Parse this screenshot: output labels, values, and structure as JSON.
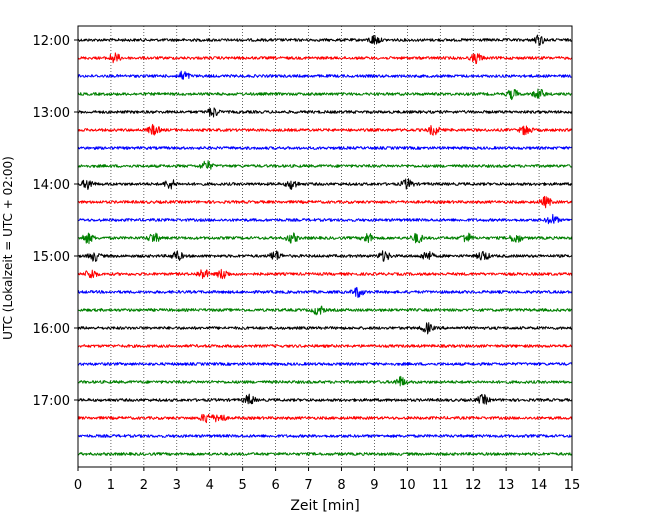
{
  "chart_data": {
    "type": "line",
    "title": "",
    "xlabel": "Zeit  [min]",
    "ylabel": "UTC (Lokalzeit = UTC + 02:00)",
    "xlim": [
      0,
      15
    ],
    "x_ticks": [
      "0",
      "1",
      "2",
      "3",
      "4",
      "5",
      "6",
      "7",
      "8",
      "9",
      "10",
      "11",
      "12",
      "13",
      "14",
      "15"
    ],
    "y_tick_labels": [
      "12:00",
      "13:00",
      "14:00",
      "15:00",
      "16:00",
      "17:00"
    ],
    "grid": "vertical dotted lines at each minute",
    "trace_colors_cycle": [
      "#000000",
      "#ff0000",
      "#0000ff",
      "#008000"
    ],
    "series": [
      {
        "start": "12:00",
        "color": "#000000",
        "events_min": [
          9.0,
          14.0
        ]
      },
      {
        "start": "12:15",
        "color": "#ff0000",
        "events_min": [
          1.1,
          12.1
        ]
      },
      {
        "start": "12:30",
        "color": "#0000ff",
        "events_min": [
          3.2
        ]
      },
      {
        "start": "12:45",
        "color": "#008000",
        "events_min": [
          13.2,
          14.0
        ]
      },
      {
        "start": "13:00",
        "color": "#000000",
        "events_min": [
          4.1
        ]
      },
      {
        "start": "13:15",
        "color": "#ff0000",
        "events_min": [
          2.3,
          10.8,
          13.6
        ]
      },
      {
        "start": "13:30",
        "color": "#0000ff",
        "events_min": []
      },
      {
        "start": "13:45",
        "color": "#008000",
        "events_min": [
          3.9
        ]
      },
      {
        "start": "14:00",
        "color": "#000000",
        "events_min": [
          0.3,
          2.8,
          6.5,
          10.0
        ]
      },
      {
        "start": "14:15",
        "color": "#ff0000",
        "events_min": [
          14.2
        ]
      },
      {
        "start": "14:30",
        "color": "#0000ff",
        "events_min": [
          14.4
        ]
      },
      {
        "start": "14:45",
        "color": "#008000",
        "events_min": [
          0.3,
          2.3,
          6.5,
          8.8,
          10.3,
          11.8,
          13.3
        ]
      },
      {
        "start": "15:00",
        "color": "#000000",
        "events_min": [
          0.5,
          3.0,
          6.0,
          9.3,
          10.6,
          12.3
        ]
      },
      {
        "start": "15:15",
        "color": "#ff0000",
        "events_min": [
          0.4,
          3.8,
          4.4
        ]
      },
      {
        "start": "15:30",
        "color": "#0000ff",
        "events_min": [
          8.5
        ]
      },
      {
        "start": "15:45",
        "color": "#008000",
        "events_min": [
          7.3
        ]
      },
      {
        "start": "16:00",
        "color": "#000000",
        "events_min": [
          10.6
        ]
      },
      {
        "start": "16:15",
        "color": "#ff0000",
        "events_min": []
      },
      {
        "start": "16:30",
        "color": "#0000ff",
        "events_min": []
      },
      {
        "start": "16:45",
        "color": "#008000",
        "events_min": [
          9.8
        ]
      },
      {
        "start": "17:00",
        "color": "#000000",
        "events_min": [
          5.2,
          12.3
        ]
      },
      {
        "start": "17:15",
        "color": "#ff0000",
        "events_min": [
          3.9,
          4.3
        ]
      },
      {
        "start": "17:30",
        "color": "#0000ff",
        "events_min": []
      },
      {
        "start": "17:45",
        "color": "#008000",
        "events_min": []
      }
    ]
  }
}
